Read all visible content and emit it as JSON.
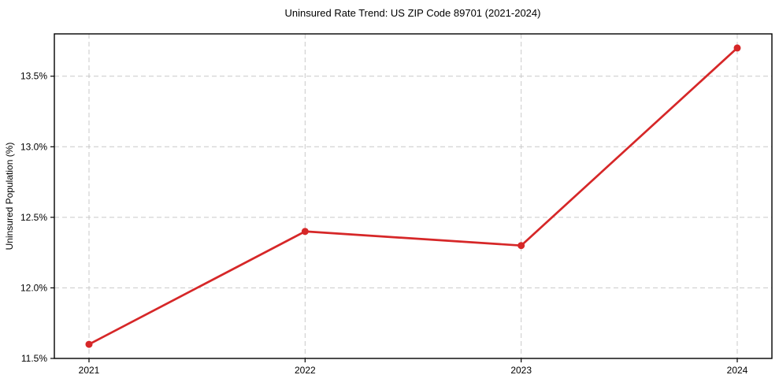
{
  "chart_data": {
    "type": "line",
    "title": "Uninsured Rate Trend: US ZIP Code 89701 (2021-2024)",
    "xlabel": "",
    "ylabel": "Uninsured Population (%)",
    "x": [
      2021,
      2022,
      2023,
      2024
    ],
    "x_tick_labels": [
      "2021",
      "2022",
      "2023",
      "2024"
    ],
    "series": [
      {
        "name": "Uninsured Rate",
        "values": [
          11.6,
          12.4,
          12.3,
          13.7
        ]
      }
    ],
    "y_ticks": [
      11.5,
      12.0,
      12.5,
      13.0,
      13.5
    ],
    "y_tick_labels": [
      "11.5%",
      "12.0%",
      "12.5%",
      "13.0%",
      "13.5%"
    ],
    "ylim": [
      11.5,
      13.8
    ],
    "grid": true,
    "grid_style": "dashed",
    "legend": "none",
    "colors": {
      "line": "#d62728",
      "marker": "#d62728",
      "grid": "#c9c9c9",
      "spine": "#000000",
      "text": "#000000",
      "background": "#ffffff"
    }
  }
}
